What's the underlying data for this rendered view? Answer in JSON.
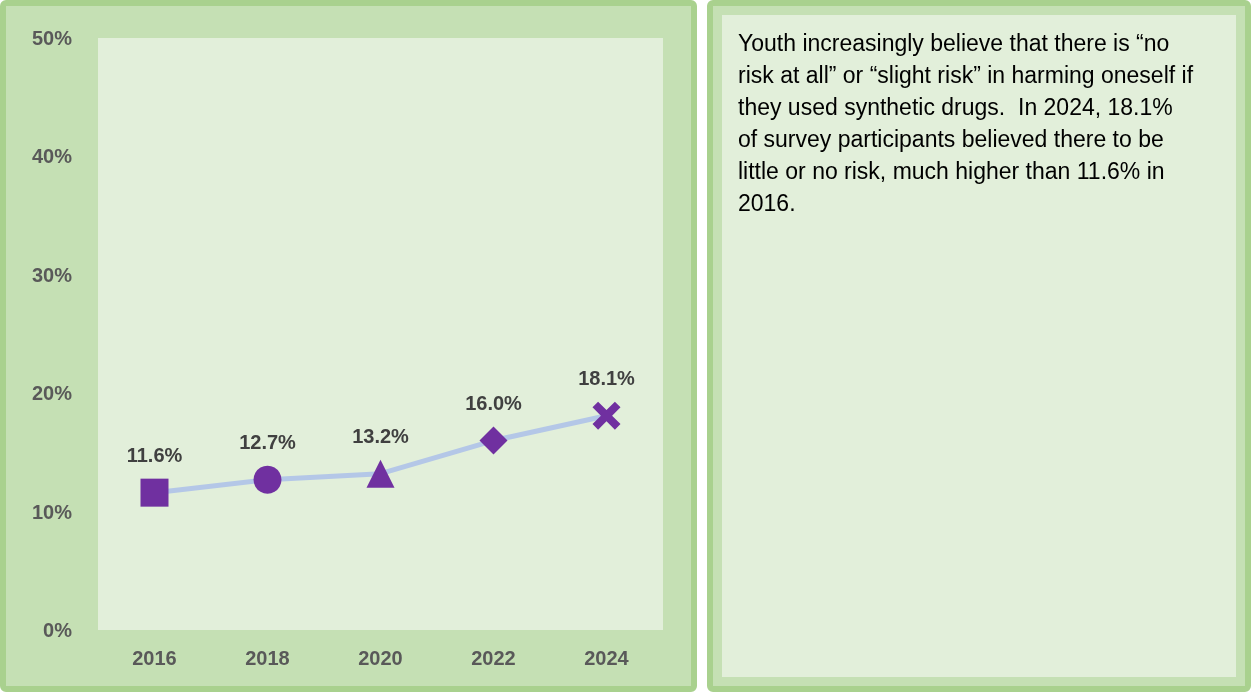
{
  "chart_data": [
    {
      "type": "line",
      "categories": [
        "2016",
        "2018",
        "2020",
        "2022",
        "2024"
      ],
      "series": [
        {
          "color": "#7030a0",
          "values": [
            11.6,
            12.7,
            13.2,
            16.0,
            18.1
          ],
          "value_labels": [
            "11.6%",
            "12.7%",
            "13.2%",
            "16.0%",
            "18.1%"
          ]
        }
      ],
      "ylim": [
        0,
        50
      ],
      "yticks": [
        {
          "value": 0,
          "label": "0%"
        },
        {
          "value": 10,
          "label": "10%"
        },
        {
          "value": 20,
          "label": "20%"
        },
        {
          "value": 30,
          "label": "30%"
        },
        {
          "value": 40,
          "label": "40%"
        },
        {
          "value": 50,
          "label": "50%"
        }
      ],
      "marker": [
        "square",
        "circle",
        "triangle",
        "diamond",
        "cross"
      ],
      "grid": false
    },
    {
      "type": "other",
      "annotations": [
        "Youth increasingly believe that there is “no risk at all” or “slight risk” in harming oneself if they used synthetic drugs.  In 2024, 18.1% of survey participants believed there to be little or no risk, much higher than 11.6% in 2016."
      ]
    }
  ]
}
